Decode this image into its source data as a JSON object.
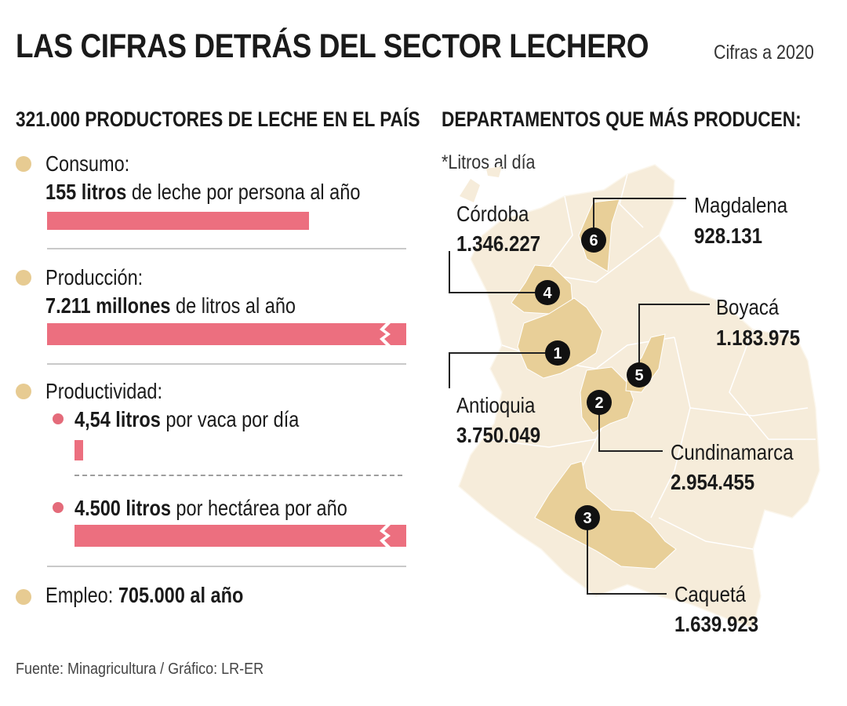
{
  "header": {
    "title": "LAS CIFRAS DETRÁS DEL SECTOR LECHERO",
    "subtitle": "Cifras a 2020"
  },
  "left": {
    "heading": "321.000 PRODUCTORES DE LECHE EN EL PAÍS",
    "consumo": {
      "label": "Consumo:",
      "bold": "155 litros",
      "rest": " de leche por persona al año"
    },
    "produccion": {
      "label": "Producción:",
      "bold": "7.211 millones",
      "rest": " de litros al año"
    },
    "productividad": {
      "label": "Productividad:",
      "vaca": {
        "bold": "4,54 litros",
        "rest": " por vaca por día"
      },
      "hectarea": {
        "bold": "4.500 litros",
        "rest": " por hectárea por año"
      }
    },
    "empleo": {
      "label": "Empleo:",
      "bold": "705.000 al año"
    }
  },
  "right": {
    "heading": "DEPARTAMENTOS QUE MÁS PRODUCEN:",
    "note": "*Litros al día"
  },
  "chart_data": [
    {
      "type": "bar",
      "title": "321.000 PRODUCTORES DE LECHE EN EL PAÍS",
      "categories": [
        "Consumo (litros por persona al año)",
        "Producción (millones de litros al año)",
        "Productividad (litros por vaca por día)",
        "Productividad (litros por hectárea por año)"
      ],
      "values": [
        155,
        7211,
        4.54,
        4500
      ],
      "broken_axis": [
        false,
        true,
        false,
        true
      ]
    },
    {
      "type": "map",
      "title": "DEPARTAMENTOS QUE MÁS PRODUCEN:",
      "unit": "Litros al día",
      "departments": [
        {
          "rank": "1",
          "name": "Antioquia",
          "value": "3.750.049"
        },
        {
          "rank": "2",
          "name": "Cundinamarca",
          "value": "2.954.455"
        },
        {
          "rank": "3",
          "name": "Caquetá",
          "value": "1.639.923"
        },
        {
          "rank": "4",
          "name": "Córdoba",
          "value": "1.346.227"
        },
        {
          "rank": "5",
          "name": "Boyacá",
          "value": "1.183.975"
        },
        {
          "rank": "6",
          "name": "Magdalena",
          "value": "928.131"
        }
      ]
    }
  ],
  "footer": {
    "source": "Fuente: Minagricultura / Gráfico: LR-ER"
  },
  "colors": {
    "bar": "#ec6f7f",
    "bullet": "#e7cb92",
    "map_base": "#f6ecda",
    "map_highlight": "#e8cf98",
    "marker": "#111111"
  }
}
